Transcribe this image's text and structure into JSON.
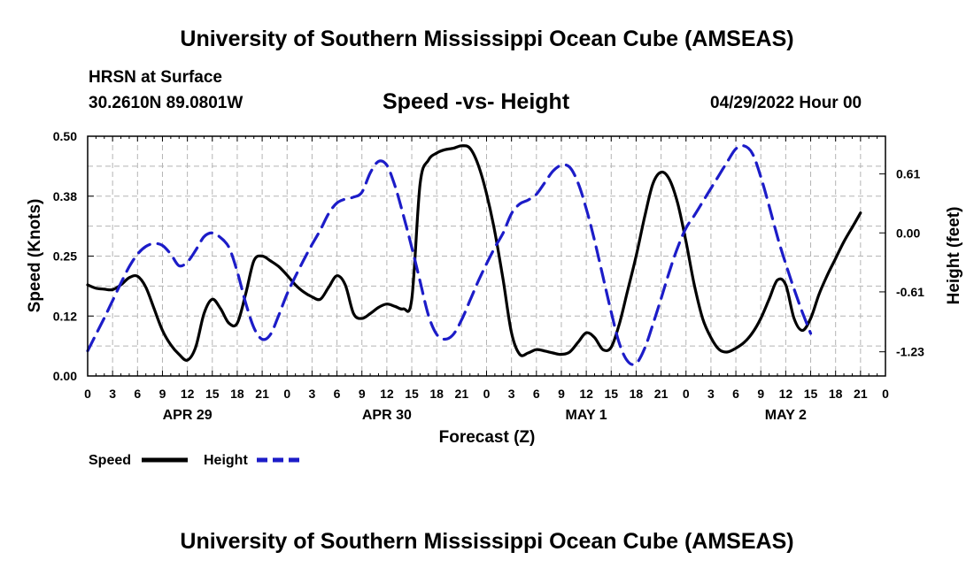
{
  "header": {
    "title": "University of Southern Mississippi Ocean Cube (AMSEAS)",
    "station": "HRSN at Surface",
    "coords": "30.2610N  89.0801W",
    "subtitle": "Speed -vs- Height",
    "datetime": "04/29/2022 Hour 00"
  },
  "footer": {
    "title": "University of Southern Mississippi Ocean Cube (AMSEAS)"
  },
  "colors": {
    "speed": "#000000",
    "height": "#1c1cc8",
    "grid": "#b4b4b4"
  },
  "chart_data": {
    "type": "line",
    "xlabel": "Forecast (Z)",
    "ylabel_left": "Speed (Knots)",
    "ylabel_right": "Height (feet)",
    "x_range_hours": [
      0,
      96
    ],
    "x_tick_labels": [
      "0",
      "3",
      "6",
      "9",
      "12",
      "15",
      "18",
      "21",
      "0",
      "3",
      "6",
      "9",
      "12",
      "15",
      "18",
      "21",
      "0",
      "3",
      "6",
      "9",
      "12",
      "15",
      "18",
      "21",
      "0",
      "3",
      "6",
      "9",
      "12",
      "15",
      "18",
      "21",
      "0"
    ],
    "date_labels": [
      {
        "hour": 12,
        "label": "APR 29"
      },
      {
        "hour": 36,
        "label": "APR 30"
      },
      {
        "hour": 60,
        "label": "MAY 1"
      },
      {
        "hour": 84,
        "label": "MAY 2"
      }
    ],
    "y_left": {
      "range": [
        0,
        0.5
      ],
      "ticks": [
        0,
        0.125,
        0.25,
        0.375,
        0.5
      ],
      "tick_labels": [
        "0.00",
        "0.12",
        "0.25",
        "0.38",
        "0.50"
      ]
    },
    "y_right": {
      "range": [
        -1.48,
        1.0
      ],
      "ticks": [
        -1.23,
        -0.61,
        0.0,
        0.61
      ],
      "tick_labels": [
        "-1.23",
        "-0.61",
        "0.00",
        "0.61"
      ]
    },
    "legend": [
      {
        "label": "Speed",
        "series": "speed"
      },
      {
        "label": "Height",
        "series": "height"
      }
    ],
    "series": [
      {
        "name": "Speed",
        "axis": "left",
        "style": "solid",
        "points": [
          [
            0,
            0.19
          ],
          [
            1,
            0.183
          ],
          [
            2,
            0.181
          ],
          [
            3,
            0.18
          ],
          [
            4,
            0.19
          ],
          [
            5,
            0.205
          ],
          [
            6,
            0.208
          ],
          [
            7,
            0.185
          ],
          [
            8,
            0.14
          ],
          [
            9,
            0.095
          ],
          [
            10,
            0.065
          ],
          [
            11,
            0.045
          ],
          [
            12,
            0.033
          ],
          [
            13,
            0.06
          ],
          [
            14,
            0.13
          ],
          [
            15,
            0.16
          ],
          [
            16,
            0.14
          ],
          [
            17,
            0.11
          ],
          [
            18,
            0.11
          ],
          [
            19,
            0.17
          ],
          [
            20,
            0.24
          ],
          [
            21,
            0.25
          ],
          [
            22,
            0.24
          ],
          [
            23,
            0.228
          ],
          [
            24,
            0.21
          ],
          [
            25,
            0.19
          ],
          [
            26,
            0.175
          ],
          [
            27,
            0.165
          ],
          [
            28,
            0.16
          ],
          [
            29,
            0.185
          ],
          [
            30,
            0.209
          ],
          [
            31,
            0.19
          ],
          [
            32,
            0.13
          ],
          [
            33,
            0.12
          ],
          [
            34,
            0.13
          ],
          [
            35,
            0.143
          ],
          [
            36,
            0.15
          ],
          [
            37,
            0.145
          ],
          [
            38,
            0.14
          ],
          [
            39,
            0.16
          ],
          [
            40,
            0.4
          ],
          [
            41,
            0.45
          ],
          [
            42,
            0.465
          ],
          [
            43,
            0.472
          ],
          [
            44,
            0.475
          ],
          [
            45,
            0.48
          ],
          [
            46,
            0.475
          ],
          [
            47,
            0.44
          ],
          [
            48,
            0.38
          ],
          [
            49,
            0.3
          ],
          [
            50,
            0.2
          ],
          [
            51,
            0.09
          ],
          [
            52,
            0.045
          ],
          [
            53,
            0.048
          ],
          [
            54,
            0.055
          ],
          [
            55,
            0.052
          ],
          [
            56,
            0.048
          ],
          [
            57,
            0.045
          ],
          [
            58,
            0.05
          ],
          [
            59,
            0.07
          ],
          [
            60,
            0.09
          ],
          [
            61,
            0.08
          ],
          [
            62,
            0.055
          ],
          [
            63,
            0.06
          ],
          [
            64,
            0.11
          ],
          [
            65,
            0.18
          ],
          [
            66,
            0.25
          ],
          [
            67,
            0.33
          ],
          [
            68,
            0.4
          ],
          [
            69,
            0.425
          ],
          [
            70,
            0.41
          ],
          [
            71,
            0.36
          ],
          [
            72,
            0.28
          ],
          [
            73,
            0.19
          ],
          [
            74,
            0.12
          ],
          [
            75,
            0.08
          ],
          [
            76,
            0.055
          ],
          [
            77,
            0.05
          ],
          [
            78,
            0.058
          ],
          [
            79,
            0.07
          ],
          [
            80,
            0.09
          ],
          [
            81,
            0.12
          ],
          [
            82,
            0.16
          ],
          [
            83,
            0.2
          ],
          [
            84,
            0.19
          ],
          [
            85,
            0.12
          ],
          [
            86,
            0.095
          ],
          [
            87,
            0.12
          ],
          [
            88,
            0.17
          ],
          [
            89,
            0.21
          ],
          [
            90,
            0.245
          ],
          [
            91,
            0.28
          ],
          [
            92,
            0.31
          ],
          [
            93,
            0.34
          ]
        ]
      },
      {
        "name": "Height",
        "axis": "right",
        "style": "dashed",
        "points": [
          [
            0,
            -1.22
          ],
          [
            1,
            -1.05
          ],
          [
            2,
            -0.88
          ],
          [
            3,
            -0.7
          ],
          [
            4,
            -0.52
          ],
          [
            5,
            -0.35
          ],
          [
            6,
            -0.22
          ],
          [
            7,
            -0.14
          ],
          [
            8,
            -0.11
          ],
          [
            9,
            -0.13
          ],
          [
            10,
            -0.22
          ],
          [
            11,
            -0.34
          ],
          [
            12,
            -0.3
          ],
          [
            13,
            -0.18
          ],
          [
            14,
            -0.04
          ],
          [
            15,
            0.0
          ],
          [
            16,
            -0.05
          ],
          [
            17,
            -0.15
          ],
          [
            18,
            -0.4
          ],
          [
            19,
            -0.72
          ],
          [
            20,
            -0.98
          ],
          [
            21,
            -1.1
          ],
          [
            22,
            -1.05
          ],
          [
            23,
            -0.85
          ],
          [
            24,
            -0.63
          ],
          [
            25,
            -0.45
          ],
          [
            26,
            -0.28
          ],
          [
            27,
            -0.12
          ],
          [
            28,
            0.03
          ],
          [
            29,
            0.2
          ],
          [
            30,
            0.31
          ],
          [
            31,
            0.35
          ],
          [
            32,
            0.37
          ],
          [
            33,
            0.42
          ],
          [
            34,
            0.62
          ],
          [
            35,
            0.74
          ],
          [
            36,
            0.7
          ],
          [
            37,
            0.48
          ],
          [
            38,
            0.18
          ],
          [
            39,
            -0.15
          ],
          [
            40,
            -0.5
          ],
          [
            41,
            -0.85
          ],
          [
            42,
            -1.05
          ],
          [
            43,
            -1.1
          ],
          [
            44,
            -1.05
          ],
          [
            45,
            -0.9
          ],
          [
            46,
            -0.7
          ],
          [
            47,
            -0.5
          ],
          [
            48,
            -0.32
          ],
          [
            49,
            -0.15
          ],
          [
            50,
            -0.0
          ],
          [
            51,
            0.2
          ],
          [
            52,
            0.3
          ],
          [
            53,
            0.34
          ],
          [
            54,
            0.4
          ],
          [
            55,
            0.52
          ],
          [
            56,
            0.64
          ],
          [
            57,
            0.7
          ],
          [
            58,
            0.68
          ],
          [
            59,
            0.52
          ],
          [
            60,
            0.25
          ],
          [
            61,
            -0.08
          ],
          [
            62,
            -0.45
          ],
          [
            63,
            -0.82
          ],
          [
            64,
            -1.15
          ],
          [
            65,
            -1.33
          ],
          [
            66,
            -1.35
          ],
          [
            67,
            -1.2
          ],
          [
            68,
            -0.95
          ],
          [
            69,
            -0.68
          ],
          [
            70,
            -0.4
          ],
          [
            71,
            -0.15
          ],
          [
            72,
            0.05
          ],
          [
            73,
            0.18
          ],
          [
            74,
            0.32
          ],
          [
            75,
            0.46
          ],
          [
            76,
            0.6
          ],
          [
            77,
            0.74
          ],
          [
            78,
            0.87
          ],
          [
            79,
            0.9
          ],
          [
            80,
            0.82
          ],
          [
            81,
            0.58
          ],
          [
            82,
            0.28
          ],
          [
            83,
            -0.04
          ],
          [
            84,
            -0.32
          ],
          [
            85,
            -0.58
          ],
          [
            86,
            -0.82
          ],
          [
            87,
            -1.04
          ]
        ]
      }
    ]
  }
}
